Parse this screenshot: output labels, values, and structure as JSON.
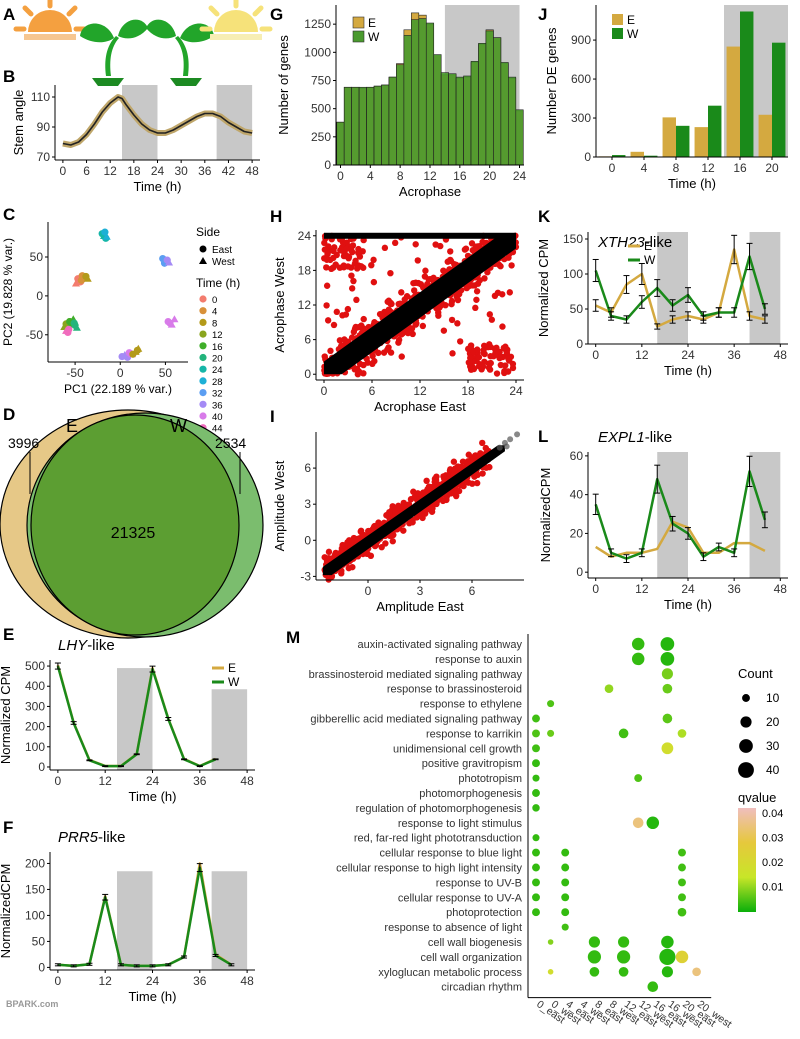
{
  "colors": {
    "east": "#d4a940",
    "west": "#1a8a1a",
    "shade": "#c8c8c8",
    "black": "#000000",
    "red": "#e01010",
    "venn_east": "#e6c887",
    "venn_west": "#7bbd6e",
    "venn_inner": "#5c9e32"
  },
  "panel_letters": [
    "A",
    "B",
    "C",
    "D",
    "E",
    "F",
    "G",
    "H",
    "I",
    "J",
    "K",
    "L",
    "M"
  ],
  "watermark": "BPARK.com",
  "A": {
    "icons": [
      "sun-east-icon",
      "seedling-icon",
      "seedling-icon",
      "sun-west-icon"
    ]
  },
  "B": {
    "ylabel": "Stem angle",
    "xlabel": "Time (h)",
    "xticks": [
      0,
      6,
      12,
      18,
      24,
      30,
      36,
      42,
      48
    ],
    "yticks": [
      70,
      90,
      110
    ],
    "xlim": [
      -2,
      50
    ],
    "ylim": [
      68,
      118
    ],
    "shade": [
      [
        15,
        24
      ],
      [
        39,
        48
      ]
    ],
    "x": [
      0,
      2,
      4,
      6,
      8,
      10,
      12,
      14,
      15,
      16,
      18,
      20,
      22,
      24,
      26,
      28,
      30,
      32,
      34,
      36,
      38,
      40,
      42,
      44,
      46,
      48
    ],
    "y": [
      79,
      78,
      80,
      85,
      92,
      100,
      106,
      110,
      109,
      105,
      98,
      92,
      88,
      86,
      86,
      88,
      91,
      94,
      97,
      99,
      99,
      97,
      93,
      90,
      87,
      86
    ]
  },
  "C": {
    "xlabel": "PC1 (22.189 % var.)",
    "ylabel": "PC2 (19.828 % var.)",
    "xticks": [
      -50,
      0,
      50
    ],
    "yticks": [
      -50,
      0,
      50
    ],
    "xlim": [
      -80,
      75
    ],
    "ylim": [
      -85,
      95
    ],
    "legend_title_side": "Side",
    "legend_side": [
      "East",
      "West"
    ],
    "legend_title_time": "Time (h)",
    "times": [
      "0",
      "4",
      "8",
      "12",
      "16",
      "20",
      "24",
      "28",
      "32",
      "36",
      "40",
      "44"
    ],
    "time_colors": [
      "#f37c6e",
      "#d8913a",
      "#b39a1a",
      "#8aa51e",
      "#3fae2a",
      "#23b47c",
      "#15b6a8",
      "#1db0d6",
      "#5b9ef2",
      "#a48af5",
      "#d87be9",
      "#f06cbd"
    ],
    "clusters": [
      {
        "t": "0",
        "x": [
          -47,
          -45,
          -44,
          -49
        ],
        "y": [
          22,
          24,
          18,
          16
        ]
      },
      {
        "t": "4",
        "x": [
          -42,
          -40,
          -43
        ],
        "y": [
          26,
          24,
          20
        ]
      },
      {
        "t": "8",
        "x": [
          -38,
          -36
        ],
        "y": [
          25,
          22
        ]
      },
      {
        "t": "12",
        "x": [
          -60,
          -58,
          -56,
          -62
        ],
        "y": [
          -36,
          -38,
          -33,
          -40
        ]
      },
      {
        "t": "16",
        "x": [
          -56,
          -52,
          -54
        ],
        "y": [
          -33,
          -30,
          -36
        ]
      },
      {
        "t": "20",
        "x": [
          -50,
          -48,
          -51
        ],
        "y": [
          -38,
          -41,
          -35
        ]
      },
      {
        "t": "24",
        "x": [
          -20,
          -18,
          -16
        ],
        "y": [
          80,
          77,
          74
        ]
      },
      {
        "t": "28",
        "x": [
          -17,
          -15
        ],
        "y": [
          82,
          76
        ]
      },
      {
        "t": "32",
        "x": [
          47,
          50,
          49,
          51
        ],
        "y": [
          48,
          46,
          42,
          44
        ]
      },
      {
        "t": "36",
        "x": [
          52,
          54
        ],
        "y": [
          46,
          43
        ]
      },
      {
        "t": "40",
        "x": [
          55,
          57,
          53,
          60
        ],
        "y": [
          -35,
          -37,
          -33,
          -30
        ]
      },
      {
        "t": "44",
        "x": [
          -58,
          -60,
          -57
        ],
        "y": [
          -47,
          -45,
          -43
        ]
      },
      {
        "t": "36",
        "x": [
          2,
          5,
          8
        ],
        "y": [
          -78,
          -76,
          -79
        ]
      },
      {
        "t": "40",
        "x": [
          10,
          13
        ],
        "y": [
          -73,
          -75
        ]
      },
      {
        "t": "8",
        "x": [
          14,
          17,
          19,
          20
        ],
        "y": [
          -75,
          -72,
          -70,
          -68
        ]
      }
    ]
  },
  "D": {
    "label_e": "E",
    "label_w": "W",
    "only_e": "3996",
    "both": "21325",
    "only_w": "2534"
  },
  "E": {
    "title": "LHY",
    "title_suffix": "-like",
    "ylabel": "Normalized CPM",
    "xlabel": "Time (h)",
    "xticks": [
      0,
      12,
      24,
      36,
      48
    ],
    "yticks": [
      0,
      100,
      200,
      300,
      400,
      500
    ],
    "xlim": [
      -2,
      50
    ],
    "ylim": [
      -15,
      530
    ],
    "shade": [
      [
        15,
        24
      ],
      [
        39,
        48
      ]
    ],
    "shade_top": [
      490,
      385
    ],
    "legend": [
      "E",
      "W"
    ],
    "x": [
      0,
      4,
      8,
      12,
      16,
      20,
      24,
      28,
      32,
      36,
      40
    ],
    "e": [
      505,
      220,
      35,
      5,
      5,
      65,
      490,
      240,
      40,
      5,
      40
    ],
    "w": [
      500,
      218,
      33,
      4,
      4,
      63,
      485,
      238,
      38,
      4,
      38
    ]
  },
  "F": {
    "title": "PRR5",
    "title_suffix": "-like",
    "ylabel": "NormalizedCPM",
    "xlabel": "Time (h)",
    "xticks": [
      0,
      12,
      24,
      36,
      48
    ],
    "yticks": [
      0,
      50,
      100,
      150,
      200
    ],
    "xlim": [
      -2,
      50
    ],
    "ylim": [
      -5,
      222
    ],
    "shade": [
      [
        15,
        24
      ],
      [
        39,
        48
      ]
    ],
    "shade_top": [
      185,
      185
    ],
    "x": [
      0,
      4,
      8,
      12,
      16,
      20,
      24,
      28,
      32,
      36,
      40,
      44
    ],
    "e": [
      5,
      3,
      6,
      137,
      5,
      3,
      3,
      5,
      20,
      200,
      25,
      5
    ],
    "w": [
      5,
      3,
      6,
      135,
      5,
      3,
      3,
      5,
      20,
      192,
      23,
      5
    ]
  },
  "G": {
    "ylabel": "Number of genes",
    "xlabel": "Acrophase",
    "legend": [
      "E",
      "W"
    ],
    "xticks": [
      0,
      4,
      8,
      12,
      16,
      20,
      24
    ],
    "yticks": [
      0,
      250,
      500,
      750,
      1000,
      1250
    ],
    "xlim": [
      -0.6,
      24.6
    ],
    "ylim": [
      0,
      1420
    ],
    "shade": [
      [
        14,
        24
      ]
    ],
    "bins": [
      0,
      1,
      2,
      3,
      4,
      5,
      6,
      7,
      8,
      9,
      10,
      11,
      12,
      13,
      14,
      15,
      16,
      17,
      18,
      19,
      20,
      21,
      22,
      23,
      24
    ],
    "e": [
      380,
      690,
      690,
      680,
      690,
      700,
      710,
      780,
      900,
      1200,
      1350,
      1330,
      1250,
      970,
      800,
      800,
      770,
      780,
      910,
      1070,
      1200,
      1130,
      900,
      770,
      480
    ],
    "w": [
      380,
      690,
      690,
      690,
      690,
      700,
      710,
      780,
      890,
      1150,
      1290,
      1300,
      1260,
      980,
      820,
      810,
      780,
      790,
      920,
      1080,
      1190,
      1130,
      910,
      780,
      490
    ]
  },
  "H": {
    "ylabel": "Acrophase West",
    "xlabel": "Acrophase East",
    "xticks": [
      0,
      6,
      12,
      18,
      24
    ],
    "yticks": [
      0,
      6,
      12,
      18,
      24
    ],
    "xlim": [
      -1,
      25
    ],
    "ylim": [
      -1,
      25
    ]
  },
  "I": {
    "ylabel": "Amplitude West",
    "xlabel": "Amplitude East",
    "xticks": [
      0,
      3,
      6
    ],
    "yticks": [
      -3,
      0,
      3,
      6
    ],
    "xlim": [
      -3,
      9
    ],
    "ylim": [
      -3.3,
      9
    ]
  },
  "J": {
    "ylabel": "Number DE genes",
    "xlabel": "Time (h)",
    "legend": [
      "E",
      "W"
    ],
    "categories": [
      "0",
      "4",
      "8",
      "12",
      "16",
      "20"
    ],
    "yticks": [
      0,
      300,
      600,
      900
    ],
    "ylim": [
      0,
      1170
    ],
    "shade_from_index": 4,
    "e": [
      5,
      40,
      305,
      230,
      850,
      325
    ],
    "w": [
      15,
      10,
      240,
      395,
      1120,
      880
    ]
  },
  "K": {
    "title": "XTH23",
    "title_suffix": "-like",
    "ylabel": "Normalized CPM",
    "xlabel": "Time (h)",
    "legend": [
      "E",
      "W"
    ],
    "xticks": [
      0,
      12,
      24,
      36,
      48
    ],
    "yticks": [
      0,
      50,
      100,
      150
    ],
    "xlim": [
      -2,
      50
    ],
    "ylim": [
      0,
      160
    ],
    "shade": [
      [
        16,
        24
      ],
      [
        40,
        48
      ]
    ],
    "x": [
      0,
      4,
      8,
      12,
      16,
      20,
      24,
      28,
      32,
      36,
      40,
      44
    ],
    "e": [
      55,
      45,
      85,
      100,
      25,
      35,
      40,
      35,
      45,
      135,
      40,
      35
    ],
    "w": [
      105,
      40,
      35,
      60,
      80,
      55,
      70,
      40,
      45,
      45,
      125,
      50
    ]
  },
  "L": {
    "title": "EXPL1",
    "title_suffix": "-like",
    "ylabel": "NormalizedCPM",
    "xlabel": "Time (h)",
    "xticks": [
      0,
      12,
      24,
      36,
      48
    ],
    "yticks": [
      0,
      20,
      40,
      60
    ],
    "xlim": [
      -2,
      50
    ],
    "ylim": [
      -3,
      62
    ],
    "shade": [
      [
        16,
        24
      ],
      [
        40,
        48
      ]
    ],
    "x": [
      0,
      4,
      8,
      12,
      16,
      20,
      24,
      28,
      32,
      36,
      40,
      44
    ],
    "e": [
      13,
      8,
      10,
      10,
      12,
      26,
      23,
      10,
      10,
      15,
      15,
      11
    ],
    "w": [
      35,
      10,
      7,
      10,
      48,
      25,
      20,
      8,
      13,
      10,
      52,
      27
    ]
  },
  "M": {
    "terms": [
      "auxin-activated signaling pathway",
      "response to auxin",
      "brassinosteroid mediated signaling pathway",
      "response to brassinosteroid",
      "response to ethylene",
      "gibberellic acid mediated signaling pathway",
      "response to karrikin",
      "unidimensional cell growth",
      "positive gravitropism",
      "phototropism",
      "photomorphogenesis",
      "regulation of photomorphogenesis",
      "response to light stimulus",
      "red, far-red light phototransduction",
      "cellular response to blue light",
      "cellular response to high light intensity",
      "response to UV-B",
      "cellular response to UV-A",
      "photoprotection",
      "response to absence of light",
      "cell wall biogenesis",
      "cell wall organization",
      "xyloglucan metabolic process",
      "circadian rhythm"
    ],
    "columns": [
      "0_east",
      "0_west",
      "4_east",
      "4_west",
      "8_east",
      "8_west",
      "12_east",
      "12_west",
      "16_east",
      "16_west",
      "20_east",
      "20_west"
    ],
    "legend_count_title": "Count",
    "count_levels": [
      10,
      20,
      30,
      40
    ],
    "legend_q_title": "qvalue",
    "q_ticks": [
      "0.04",
      "0.03",
      "0.02",
      "0.01"
    ],
    "points": [
      {
        "r": 0,
        "c": 7,
        "n": 25,
        "q": 0.006
      },
      {
        "r": 0,
        "c": 9,
        "n": 30,
        "q": 0.005
      },
      {
        "r": 1,
        "c": 7,
        "n": 25,
        "q": 0.006
      },
      {
        "r": 1,
        "c": 9,
        "n": 30,
        "q": 0.005
      },
      {
        "r": 2,
        "c": 9,
        "n": 20,
        "q": 0.011
      },
      {
        "r": 3,
        "c": 5,
        "n": 12,
        "q": 0.013
      },
      {
        "r": 3,
        "c": 9,
        "n": 15,
        "q": 0.01
      },
      {
        "r": 4,
        "c": 1,
        "n": 8,
        "q": 0.008
      },
      {
        "r": 5,
        "c": 0,
        "n": 10,
        "q": 0.007
      },
      {
        "r": 5,
        "c": 9,
        "n": 15,
        "q": 0.009
      },
      {
        "r": 6,
        "c": 0,
        "n": 10,
        "q": 0.008
      },
      {
        "r": 6,
        "c": 1,
        "n": 8,
        "q": 0.01
      },
      {
        "r": 6,
        "c": 6,
        "n": 15,
        "q": 0.007
      },
      {
        "r": 6,
        "c": 10,
        "n": 12,
        "q": 0.015
      },
      {
        "r": 7,
        "c": 0,
        "n": 10,
        "q": 0.007
      },
      {
        "r": 7,
        "c": 9,
        "n": 22,
        "q": 0.02
      },
      {
        "r": 8,
        "c": 0,
        "n": 10,
        "q": 0.006
      },
      {
        "r": 9,
        "c": 0,
        "n": 8,
        "q": 0.006
      },
      {
        "r": 9,
        "c": 7,
        "n": 10,
        "q": 0.008
      },
      {
        "r": 10,
        "c": 0,
        "n": 10,
        "q": 0.006
      },
      {
        "r": 11,
        "c": 0,
        "n": 9,
        "q": 0.006
      },
      {
        "r": 12,
        "c": 7,
        "n": 18,
        "q": 0.035
      },
      {
        "r": 12,
        "c": 8,
        "n": 25,
        "q": 0.005
      },
      {
        "r": 13,
        "c": 0,
        "n": 8,
        "q": 0.006
      },
      {
        "r": 14,
        "c": 0,
        "n": 10,
        "q": 0.006
      },
      {
        "r": 14,
        "c": 2,
        "n": 10,
        "q": 0.006
      },
      {
        "r": 14,
        "c": 10,
        "n": 10,
        "q": 0.007
      },
      {
        "r": 15,
        "c": 0,
        "n": 10,
        "q": 0.006
      },
      {
        "r": 15,
        "c": 2,
        "n": 10,
        "q": 0.006
      },
      {
        "r": 15,
        "c": 10,
        "n": 10,
        "q": 0.007
      },
      {
        "r": 16,
        "c": 0,
        "n": 10,
        "q": 0.006
      },
      {
        "r": 16,
        "c": 2,
        "n": 10,
        "q": 0.006
      },
      {
        "r": 16,
        "c": 10,
        "n": 10,
        "q": 0.007
      },
      {
        "r": 17,
        "c": 0,
        "n": 10,
        "q": 0.006
      },
      {
        "r": 17,
        "c": 2,
        "n": 10,
        "q": 0.006
      },
      {
        "r": 17,
        "c": 10,
        "n": 10,
        "q": 0.007
      },
      {
        "r": 18,
        "c": 0,
        "n": 10,
        "q": 0.006
      },
      {
        "r": 18,
        "c": 2,
        "n": 10,
        "q": 0.006
      },
      {
        "r": 18,
        "c": 10,
        "n": 12,
        "q": 0.007
      },
      {
        "r": 19,
        "c": 2,
        "n": 8,
        "q": 0.007
      },
      {
        "r": 20,
        "c": 1,
        "n": 5,
        "q": 0.012
      },
      {
        "r": 20,
        "c": 4,
        "n": 20,
        "q": 0.006
      },
      {
        "r": 20,
        "c": 6,
        "n": 20,
        "q": 0.006
      },
      {
        "r": 20,
        "c": 9,
        "n": 25,
        "q": 0.005
      },
      {
        "r": 21,
        "c": 4,
        "n": 28,
        "q": 0.006
      },
      {
        "r": 21,
        "c": 6,
        "n": 28,
        "q": 0.006
      },
      {
        "r": 21,
        "c": 9,
        "n": 42,
        "q": 0.005
      },
      {
        "r": 21,
        "c": 10,
        "n": 25,
        "q": 0.024
      },
      {
        "r": 22,
        "c": 1,
        "n": 5,
        "q": 0.02
      },
      {
        "r": 22,
        "c": 4,
        "n": 15,
        "q": 0.006
      },
      {
        "r": 22,
        "c": 6,
        "n": 15,
        "q": 0.006
      },
      {
        "r": 22,
        "c": 9,
        "n": 20,
        "q": 0.005
      },
      {
        "r": 22,
        "c": 11,
        "n": 12,
        "q": 0.035
      },
      {
        "r": 23,
        "c": 8,
        "n": 18,
        "q": 0.006
      }
    ]
  }
}
